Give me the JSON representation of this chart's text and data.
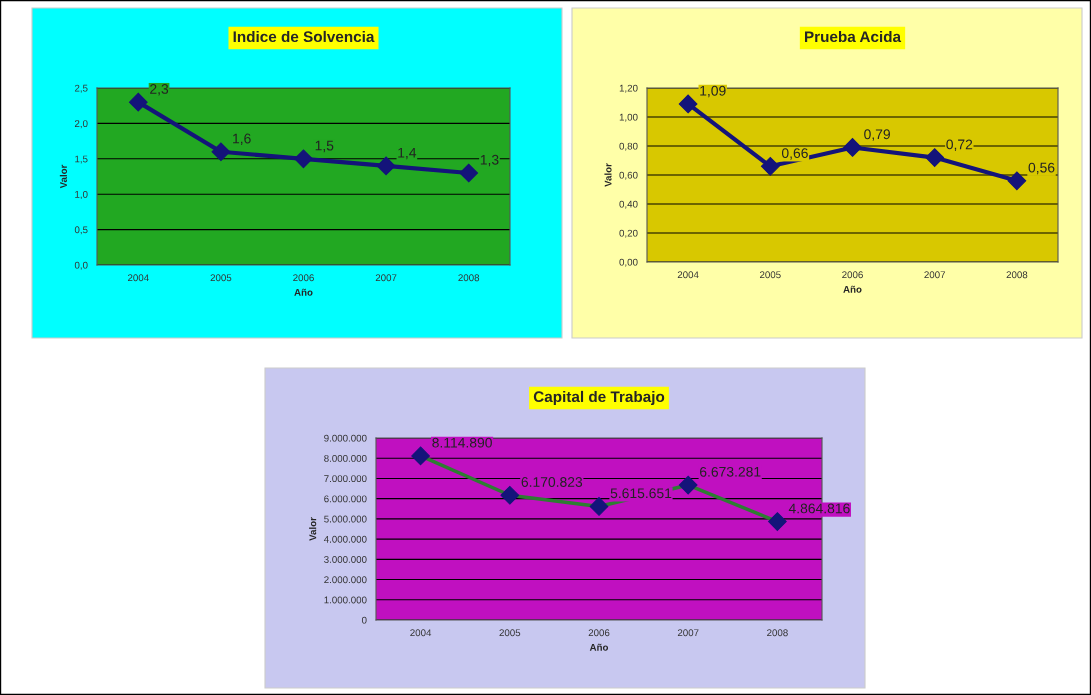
{
  "chart_data": [
    {
      "type": "line",
      "title": "Indice de Solvencia",
      "xlabel": "Año",
      "ylabel": "Valor",
      "categories": [
        "2004",
        "2005",
        "2006",
        "2007",
        "2008"
      ],
      "series": [
        {
          "color": "#14147a",
          "values": [
            2.3,
            1.6,
            1.5,
            1.4,
            1.3
          ],
          "value_labels": [
            "2,3",
            "1,6",
            "1,5",
            "1,4",
            "1,3"
          ]
        }
      ],
      "ylim": [
        0,
        2.5
      ],
      "yticks": [
        {
          "value": 0,
          "label": "0,0"
        },
        {
          "value": 0.5,
          "label": "0,5"
        },
        {
          "value": 1.0,
          "label": "1,0"
        },
        {
          "value": 1.5,
          "label": "1,5"
        },
        {
          "value": 2.0,
          "label": "2,0"
        },
        {
          "value": 2.5,
          "label": "2,5"
        }
      ],
      "grid": "y",
      "marker": "diamond"
    },
    {
      "type": "line",
      "title": "Prueba Acida",
      "xlabel": "Año",
      "ylabel": "Valor",
      "categories": [
        "2004",
        "2005",
        "2006",
        "2007",
        "2008"
      ],
      "series": [
        {
          "color": "#14147a",
          "values": [
            1.09,
            0.66,
            0.79,
            0.72,
            0.56
          ],
          "value_labels": [
            "1,09",
            "0,66",
            "0,79",
            "0,72",
            "0,56"
          ]
        }
      ],
      "ylim": [
        0,
        1.2
      ],
      "yticks": [
        {
          "value": 0,
          "label": "0,00"
        },
        {
          "value": 0.2,
          "label": "0,20"
        },
        {
          "value": 0.4,
          "label": "0,40"
        },
        {
          "value": 0.6,
          "label": "0,60"
        },
        {
          "value": 0.8,
          "label": "0,80"
        },
        {
          "value": 1.0,
          "label": "1,00"
        },
        {
          "value": 1.2,
          "label": "1,20"
        }
      ],
      "grid": "y",
      "marker": "diamond"
    },
    {
      "type": "line",
      "title": "Capital de Trabajo",
      "xlabel": "Año",
      "ylabel": "Valor",
      "categories": [
        "2004",
        "2005",
        "2006",
        "2007",
        "2008"
      ],
      "series": [
        {
          "color": "#2e7d32",
          "values": [
            8114890,
            6170823,
            5615651,
            6673281,
            4864816
          ],
          "value_labels": [
            "8.114.890",
            "6.170.823",
            "5.615.651",
            "6.673.281",
            "4.864.816"
          ]
        }
      ],
      "ylim": [
        0,
        9000000
      ],
      "yticks": [
        0,
        {
          "value": 1000000,
          "label": "1.000.000"
        },
        {
          "value": 2000000,
          "label": "2.000.000"
        },
        {
          "value": 3000000,
          "label": "3.000.000"
        },
        {
          "value": 4000000,
          "label": "4.000.000"
        },
        {
          "value": 5000000,
          "label": "5.000.000"
        },
        {
          "value": 6000000,
          "label": "6.000.000"
        },
        {
          "value": 7000000,
          "label": "7.000.000"
        },
        {
          "value": 8000000,
          "label": "8.000.000"
        },
        {
          "value": 9000000,
          "label": "9.000.000"
        }
      ],
      "grid": "y",
      "marker": "diamond"
    }
  ]
}
